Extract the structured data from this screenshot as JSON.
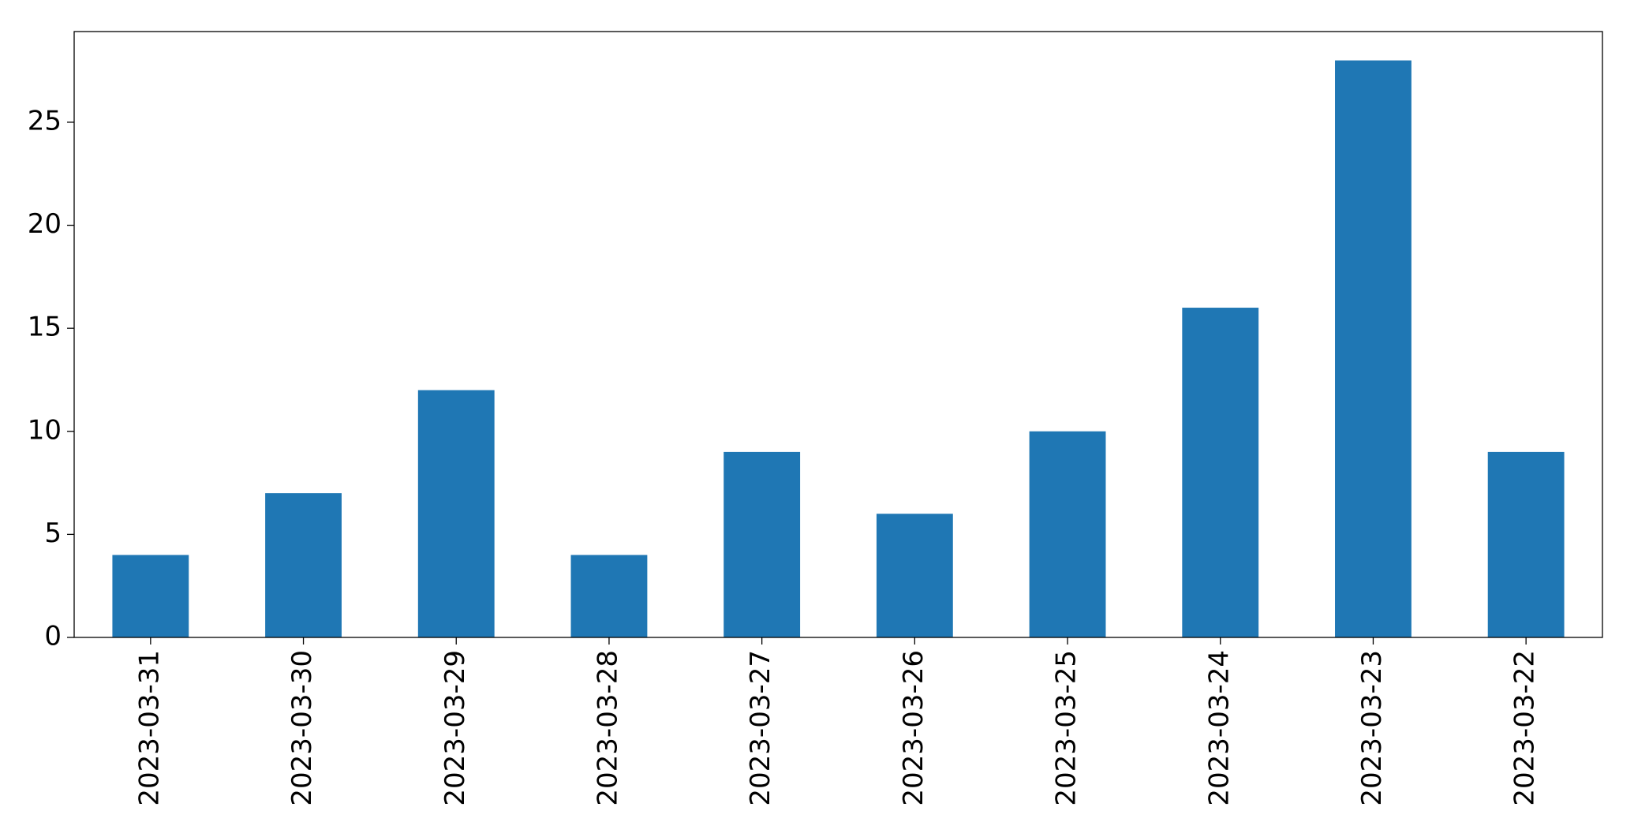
{
  "chart_data": {
    "type": "bar",
    "categories": [
      "2023-03-31",
      "2023-03-30",
      "2023-03-29",
      "2023-03-28",
      "2023-03-27",
      "2023-03-26",
      "2023-03-25",
      "2023-03-24",
      "2023-03-23",
      "2023-03-22"
    ],
    "values": [
      4,
      7,
      12,
      4,
      9,
      6,
      10,
      16,
      28,
      9
    ],
    "color": "#1f77b4",
    "ylim": [
      0,
      29.4
    ],
    "yticks": [
      0,
      5,
      10,
      15,
      20,
      25
    ],
    "grid": false
  }
}
